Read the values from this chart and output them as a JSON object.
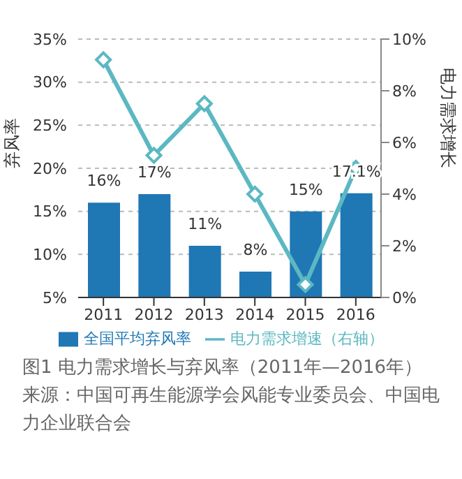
{
  "chart_data": {
    "type": "bar",
    "title": "图1  电力需求增长与弃风率（2011年—2016年）",
    "annotations": [
      "来源：中国可再生能源学会风能专业委员会、中国电力企业联合会"
    ],
    "ylabel": "弃风率",
    "y2label": "电力需求增长",
    "categories": [
      "2011",
      "2012",
      "2013",
      "2014",
      "2015",
      "2016"
    ],
    "series": [
      {
        "name": "全国平均弃风率",
        "color": "#1f77b4",
        "values": [
          16,
          17,
          11,
          8,
          15,
          17.1
        ],
        "value_labels": [
          "16%",
          "17%",
          "11%",
          "8%",
          "15%",
          "17.1%"
        ]
      },
      {
        "name": "电力需求增速（右轴）",
        "type": "line",
        "axis": "y2",
        "color": "#5bb8c2",
        "values": [
          9.2,
          5.5,
          7.5,
          4.0,
          0.5,
          5.0
        ]
      }
    ],
    "ylim": [
      5,
      35
    ],
    "yticks": [
      {
        "value": 5,
        "label": "5%"
      },
      {
        "value": 10,
        "label": "10%"
      },
      {
        "value": 15,
        "label": "15%"
      },
      {
        "value": 20,
        "label": "20%"
      },
      {
        "value": 25,
        "label": "25%"
      },
      {
        "value": 30,
        "label": "30%"
      },
      {
        "value": 35,
        "label": "35%"
      }
    ],
    "y2lim": [
      0,
      10
    ],
    "y2ticks": [
      {
        "value": 0,
        "label": "0%"
      },
      {
        "value": 2,
        "label": "2%"
      },
      {
        "value": 4,
        "label": "4%"
      },
      {
        "value": 6,
        "label": "6%"
      },
      {
        "value": 8,
        "label": "8%"
      },
      {
        "value": 10,
        "label": "10%"
      }
    ],
    "grid": "y",
    "legend": "bottom",
    "marker": "diamond",
    "line_style": "solid"
  }
}
